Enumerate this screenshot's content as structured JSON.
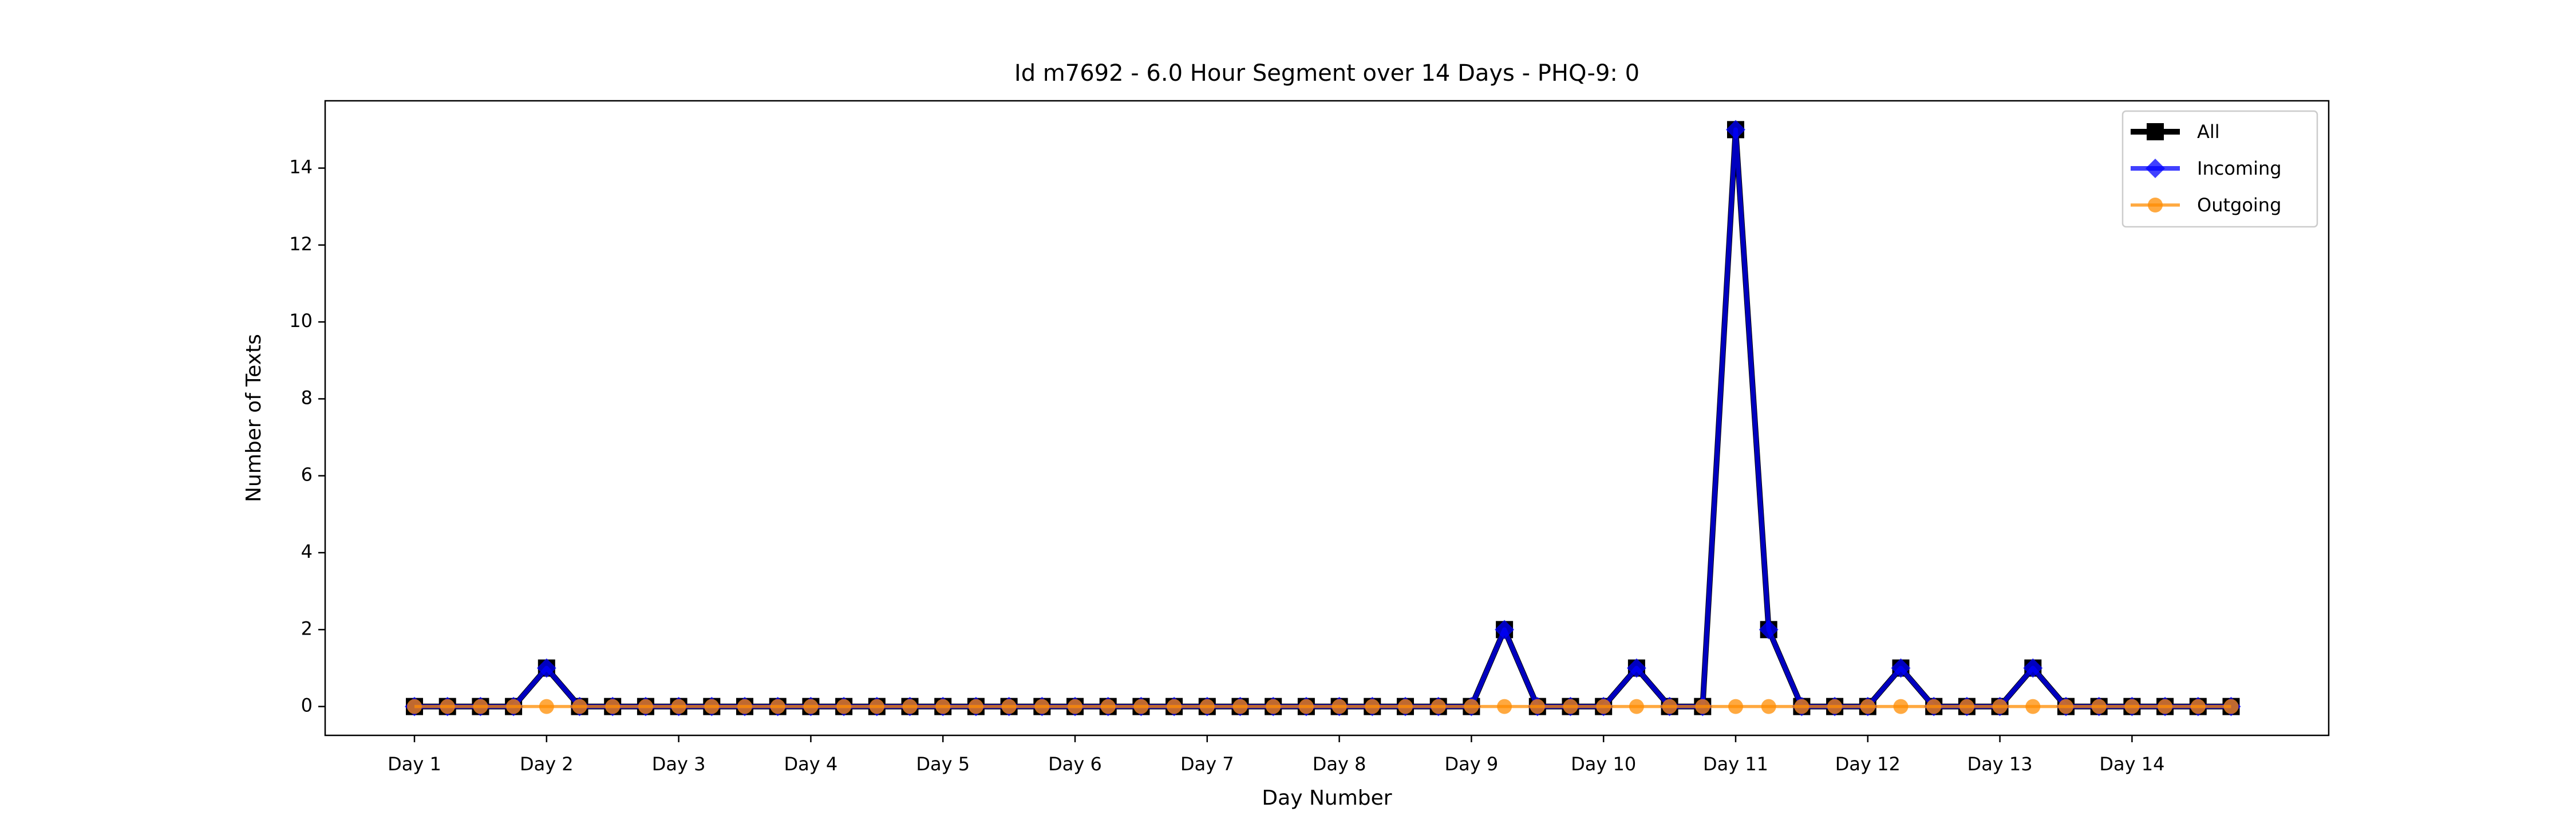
{
  "chart_data": {
    "type": "line",
    "title": "Id m7692 - 6.0 Hour Segment over 14 Days - PHQ-9: 0",
    "xlabel": "Day Number",
    "ylabel": "Number of Texts",
    "categories": [
      "Day 1",
      null,
      null,
      null,
      "Day 2",
      null,
      null,
      null,
      "Day 3",
      null,
      null,
      null,
      "Day 4",
      null,
      null,
      null,
      "Day 5",
      null,
      null,
      null,
      "Day 6",
      null,
      null,
      null,
      "Day 7",
      null,
      null,
      null,
      "Day 8",
      null,
      null,
      null,
      "Day 9",
      null,
      null,
      null,
      "Day 10",
      null,
      null,
      null,
      "Day 11",
      null,
      null,
      null,
      "Day 12",
      null,
      null,
      null,
      "Day 13",
      null,
      null,
      null,
      "Day 14",
      null,
      null,
      null
    ],
    "series": [
      {
        "name": "All",
        "color": "#000000",
        "marker": "square",
        "values": [
          0,
          0,
          0,
          0,
          1,
          0,
          0,
          0,
          0,
          0,
          0,
          0,
          0,
          0,
          0,
          0,
          0,
          0,
          0,
          0,
          0,
          0,
          0,
          0,
          0,
          0,
          0,
          0,
          0,
          0,
          0,
          0,
          0,
          2,
          0,
          0,
          0,
          1,
          0,
          0,
          15,
          2,
          0,
          0,
          0,
          1,
          0,
          0,
          0,
          1,
          0,
          0,
          0,
          0,
          0,
          0
        ]
      },
      {
        "name": "Incoming",
        "color": "#0000ff",
        "marker": "diamond",
        "values": [
          0,
          0,
          0,
          0,
          1,
          0,
          0,
          0,
          0,
          0,
          0,
          0,
          0,
          0,
          0,
          0,
          0,
          0,
          0,
          0,
          0,
          0,
          0,
          0,
          0,
          0,
          0,
          0,
          0,
          0,
          0,
          0,
          0,
          2,
          0,
          0,
          0,
          1,
          0,
          0,
          15,
          2,
          0,
          0,
          0,
          1,
          0,
          0,
          0,
          1,
          0,
          0,
          0,
          0,
          0,
          0
        ]
      },
      {
        "name": "Outgoing",
        "color": "#ff8c00",
        "marker": "circle",
        "values": [
          0,
          0,
          0,
          0,
          0,
          0,
          0,
          0,
          0,
          0,
          0,
          0,
          0,
          0,
          0,
          0,
          0,
          0,
          0,
          0,
          0,
          0,
          0,
          0,
          0,
          0,
          0,
          0,
          0,
          0,
          0,
          0,
          0,
          0,
          0,
          0,
          0,
          0,
          0,
          0,
          0,
          0,
          0,
          0,
          0,
          0,
          0,
          0,
          0,
          0,
          0,
          0,
          0,
          0,
          0,
          0
        ]
      }
    ],
    "ylim": [
      -0.75,
      15.75
    ],
    "yticks": [
      0,
      2,
      4,
      6,
      8,
      10,
      12,
      14
    ],
    "legend": "upper right",
    "grid": false
  }
}
